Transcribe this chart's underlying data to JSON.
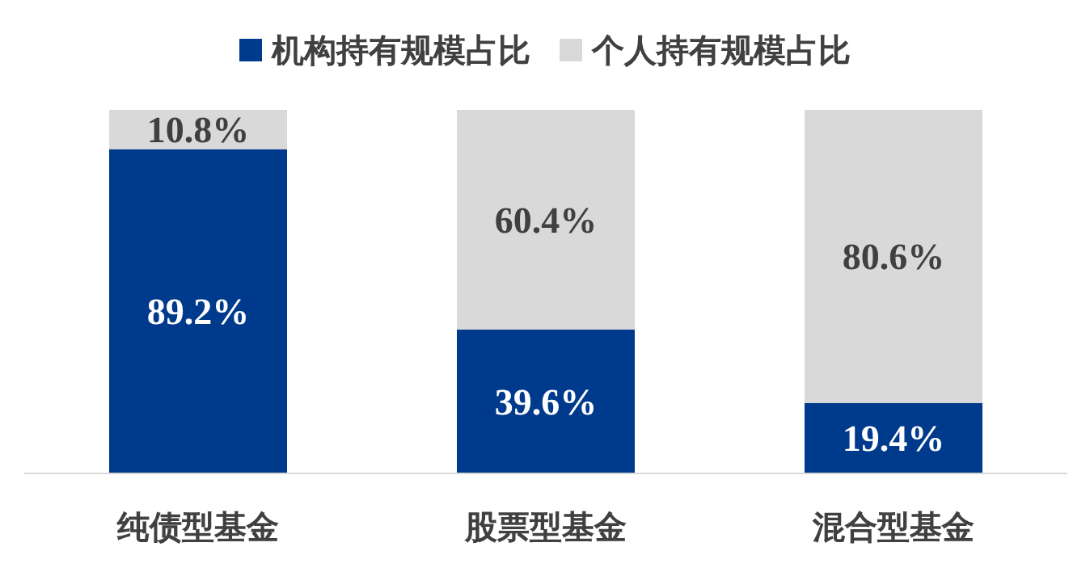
{
  "chart_data": {
    "type": "bar",
    "stacked": true,
    "legend": "top",
    "categories": [
      "纯债型基金",
      "股票型基金",
      "混合型基金"
    ],
    "series": [
      {
        "name": "机构持有规模占比",
        "color": "#003a8c",
        "values": [
          89.2,
          39.6,
          19.4
        ],
        "value_labels": [
          "89.2%",
          "39.6%",
          "19.4%"
        ]
      },
      {
        "name": "个人持有规模占比",
        "color": "#d9d9d9",
        "values": [
          10.8,
          60.4,
          80.6
        ],
        "value_labels": [
          "10.8%",
          "60.4%",
          "80.6%"
        ]
      }
    ]
  }
}
